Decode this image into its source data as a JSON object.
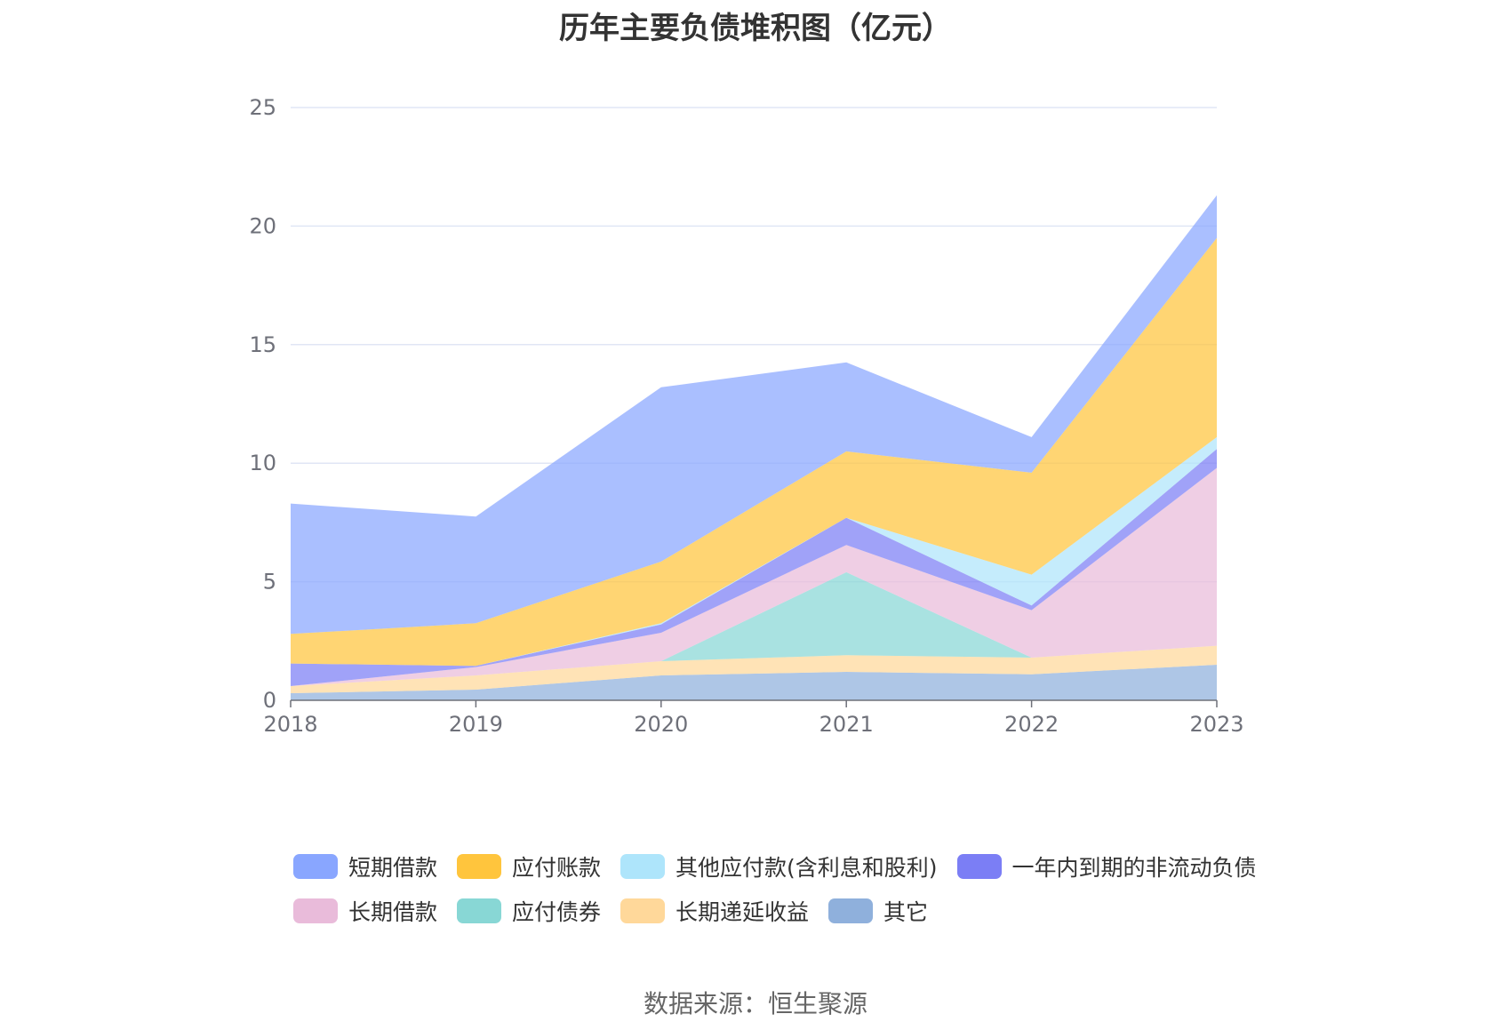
{
  "chart_data": {
    "type": "area",
    "stacked": true,
    "title": "历年主要负债堆积图（亿元）",
    "categories": [
      "2018",
      "2019",
      "2020",
      "2021",
      "2022",
      "2023"
    ],
    "ylim": [
      0,
      25
    ],
    "yticks": [
      0,
      5,
      10,
      15,
      20,
      25
    ],
    "grid": true,
    "legend_position": "bottom",
    "series": [
      {
        "name": "其它",
        "color": "#8fb0dc",
        "values": [
          0.3,
          0.45,
          1.05,
          1.2,
          1.1,
          1.5
        ]
      },
      {
        "name": "长期递延收益",
        "color": "#ffd89a",
        "values": [
          0.3,
          0.6,
          0.6,
          0.7,
          0.7,
          0.8
        ]
      },
      {
        "name": "应付债券",
        "color": "#88d7d5",
        "values": [
          0,
          0,
          0,
          3.5,
          0,
          0
        ]
      },
      {
        "name": "长期借款",
        "color": "#e9bbda",
        "values": [
          0,
          0.35,
          1.2,
          1.15,
          2.0,
          7.5
        ]
      },
      {
        "name": "一年内到期的非流动负债",
        "color": "#7b7ef5",
        "values": [
          0.95,
          0.05,
          0.35,
          1.15,
          0.2,
          0.8
        ]
      },
      {
        "name": "其他应付款(含利息和股利)",
        "color": "#aee5fb",
        "values": [
          0,
          0,
          0.05,
          0,
          1.3,
          0.5
        ]
      },
      {
        "name": "应付账款",
        "color": "#ffc53d",
        "values": [
          1.25,
          1.8,
          2.6,
          2.8,
          4.3,
          8.4
        ]
      },
      {
        "name": "短期借款",
        "color": "#89a6ff",
        "values": [
          5.5,
          4.5,
          7.35,
          3.75,
          1.5,
          1.8
        ]
      }
    ]
  },
  "legend": {
    "row1": [
      {
        "label": "短期借款",
        "color": "#89a6ff"
      },
      {
        "label": "应付账款",
        "color": "#ffc53d"
      },
      {
        "label": "其他应付款(含利息和股利)",
        "color": "#aee5fb"
      },
      {
        "label": "一年内到期的非流动负债",
        "color": "#7b7ef5"
      }
    ],
    "row2": [
      {
        "label": "长期借款",
        "color": "#e9bbda"
      },
      {
        "label": "应付债券",
        "color": "#88d7d5"
      },
      {
        "label": "长期递延收益",
        "color": "#ffd89a"
      },
      {
        "label": "其它",
        "color": "#8fb0dc"
      }
    ]
  },
  "source": "数据来源：恒生聚源"
}
